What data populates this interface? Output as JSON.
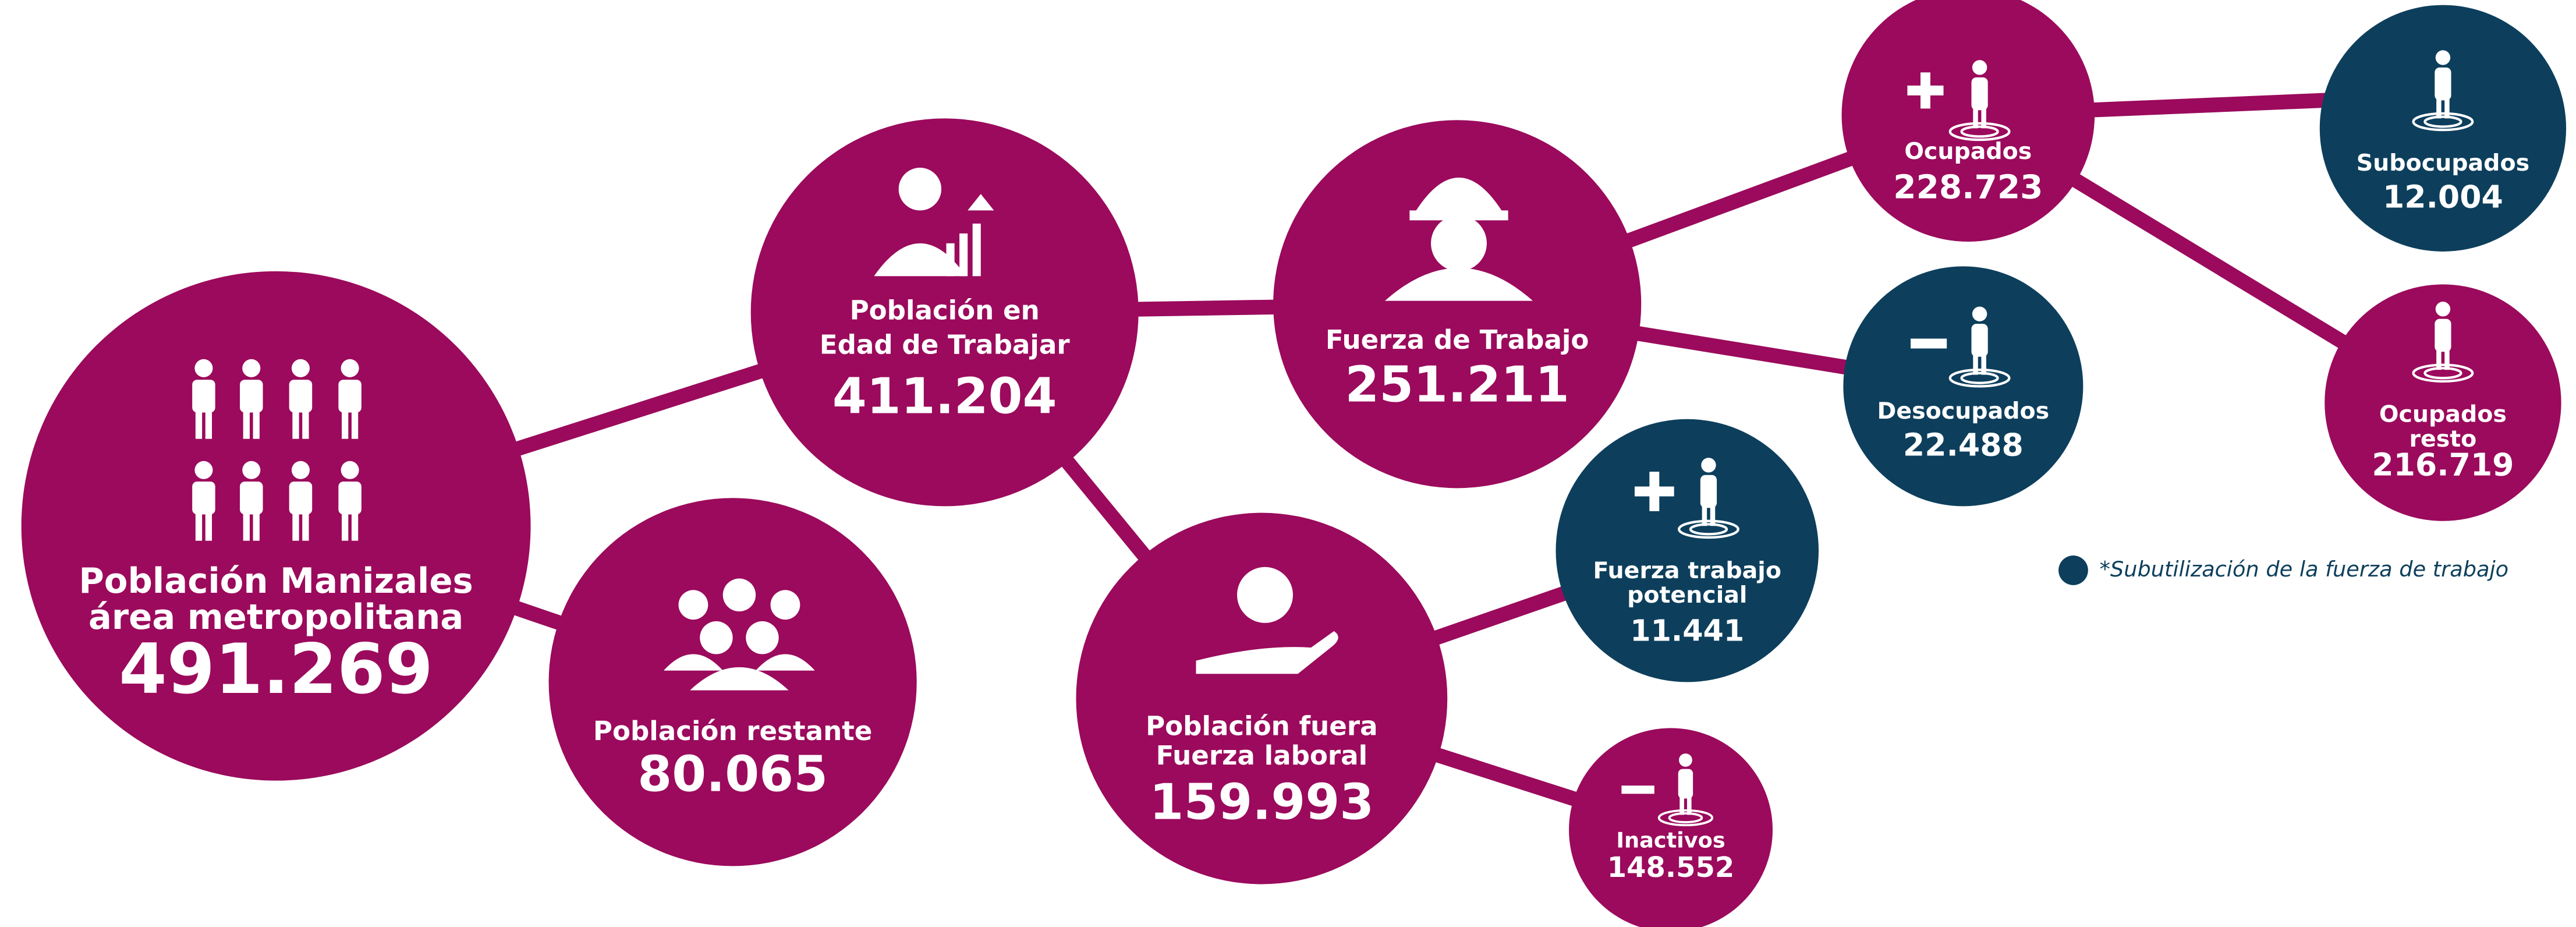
{
  "nodes": [
    {
      "label": [
        "Población Manizales",
        "área metropolitana"
      ],
      "value": "491.269"
    },
    {
      "label": [
        "Población restante"
      ],
      "value": "80.065"
    },
    {
      "label": [
        "Población en",
        "Edad de Trabajar"
      ],
      "value": "411.204"
    },
    {
      "label": [
        "Fuerza de Trabajo"
      ],
      "value": "251.211"
    },
    {
      "label": [
        "Población fuera",
        "Fuerza laboral"
      ],
      "value": "159.993"
    },
    {
      "label": [
        "Ocupados"
      ],
      "value": "228.723"
    },
    {
      "label": [
        "Desocupados"
      ],
      "value": "22.488"
    },
    {
      "label": [
        "Fuerza trabajo",
        "potencial"
      ],
      "value": "11.441"
    },
    {
      "label": [
        "Inactivos"
      ],
      "value": "148.552"
    },
    {
      "label": [
        "Subocupados"
      ],
      "value": "12.004"
    },
    {
      "label": [
        "Ocupados",
        "resto"
      ],
      "value": "216.719"
    }
  ],
  "legend": {
    "text": "*Subutilización de la fuerza de trabajo"
  }
}
